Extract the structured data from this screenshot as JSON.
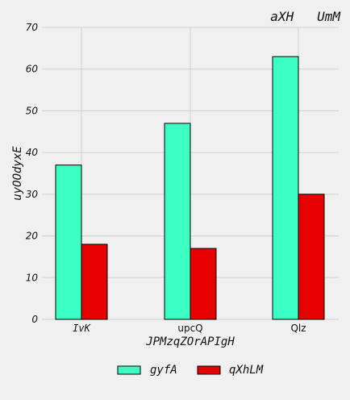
{
  "chart_data": {
    "type": "bar",
    "title": "aXH   UmM",
    "xlabel": "JPMzqZOrAPIgH",
    "ylabel": "uyOOdyxE",
    "categories": [
      "IvK",
      "upcQ",
      "Qlz"
    ],
    "series": [
      {
        "name": "gyfA",
        "values": [
          37,
          47,
          63
        ],
        "color": "#3dffc4"
      },
      {
        "name": "qXhLM",
        "values": [
          18,
          17,
          30
        ],
        "color": "#e60000"
      }
    ],
    "ylim": [
      0,
      70
    ],
    "yticks": [
      0,
      10,
      20,
      30,
      40,
      50,
      60,
      70
    ],
    "grid": true,
    "legend_position": "bottom-center"
  }
}
